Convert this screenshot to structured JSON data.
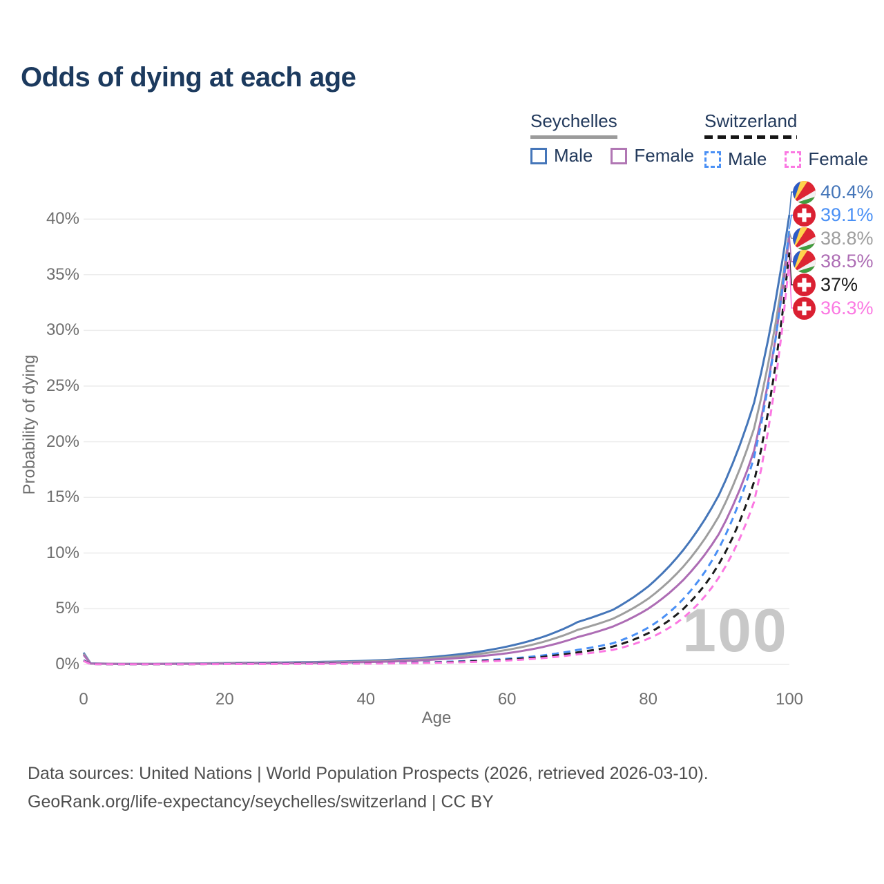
{
  "header": {
    "title": "Odds of dying at each age"
  },
  "legend": {
    "groups": [
      {
        "title": "Seychelles",
        "underline": "solid",
        "underline_color": "#9b9b9b",
        "items": [
          {
            "label": "Male",
            "color": "#4576b9",
            "dash": false
          },
          {
            "label": "Female",
            "color": "#b177b4",
            "dash": false
          }
        ]
      },
      {
        "title": "Switzerland",
        "underline": "dashed",
        "underline_color": "#151515",
        "items": [
          {
            "label": "Male",
            "color": "#4a90f5",
            "dash": true
          },
          {
            "label": "Female",
            "color": "#fb78e2",
            "dash": true
          }
        ]
      }
    ]
  },
  "chart_data": {
    "type": "line",
    "title": "Odds of dying at each age",
    "xlabel": "Age",
    "ylabel": "Probability of dying",
    "xlim": [
      0,
      100
    ],
    "ylim_pct": [
      0,
      43
    ],
    "grid": "horizontal-only",
    "watermark": "100",
    "y_ticks": [
      {
        "label": "0%",
        "value": 0
      },
      {
        "label": "5%",
        "value": 5
      },
      {
        "label": "10%",
        "value": 10
      },
      {
        "label": "15%",
        "value": 15
      },
      {
        "label": "20%",
        "value": 20
      },
      {
        "label": "25%",
        "value": 25
      },
      {
        "label": "30%",
        "value": 30
      },
      {
        "label": "35%",
        "value": 35
      },
      {
        "label": "40%",
        "value": 40
      }
    ],
    "x_ticks": [
      {
        "label": "0",
        "value": 0
      },
      {
        "label": "20",
        "value": 20
      },
      {
        "label": "40",
        "value": 40
      },
      {
        "label": "60",
        "value": 60
      },
      {
        "label": "80",
        "value": 80
      },
      {
        "label": "100",
        "value": 100
      }
    ],
    "ages": [
      0,
      1,
      5,
      10,
      15,
      20,
      25,
      30,
      35,
      40,
      45,
      50,
      55,
      60,
      65,
      70,
      75,
      80,
      85,
      90,
      95,
      100
    ],
    "series": [
      {
        "name": "Seychelles Male",
        "color": "#4576b9",
        "dash": false,
        "flag": "seychelles",
        "end_label": "40.4%",
        "end_value": 40.4,
        "values_pct": [
          1.05,
          0.09,
          0.05,
          0.05,
          0.08,
          0.12,
          0.15,
          0.19,
          0.24,
          0.32,
          0.47,
          0.7,
          1.05,
          1.6,
          2.45,
          3.8,
          4.9,
          7.0,
          10.3,
          15.2,
          23.5,
          40.4
        ]
      },
      {
        "name": "Seychelles Both sexes",
        "color": "#9e9e9e",
        "dash": false,
        "flag": "seychelles",
        "end_label": "38.8%",
        "end_value": 38.8,
        "values_pct": [
          0.95,
          0.08,
          0.05,
          0.04,
          0.07,
          0.1,
          0.12,
          0.15,
          0.19,
          0.26,
          0.38,
          0.57,
          0.86,
          1.3,
          2.0,
          3.1,
          4.1,
          5.9,
          8.8,
          13.3,
          21.2,
          38.8
        ]
      },
      {
        "name": "Seychelles Female",
        "color": "#ad6cb4",
        "dash": false,
        "flag": "seychelles",
        "end_label": "38.5%",
        "end_value": 38.5,
        "values_pct": [
          0.85,
          0.07,
          0.04,
          0.04,
          0.05,
          0.07,
          0.09,
          0.11,
          0.14,
          0.2,
          0.29,
          0.44,
          0.67,
          1.0,
          1.55,
          2.45,
          3.4,
          5.0,
          7.6,
          11.7,
          19.2,
          38.5
        ]
      },
      {
        "name": "Switzerland Male",
        "color": "#4a90f5",
        "dash": true,
        "flag": "switzerland",
        "end_label": "39.1%",
        "end_value": 39.1,
        "values_pct": [
          0.38,
          0.03,
          0.01,
          0.01,
          0.03,
          0.05,
          0.06,
          0.07,
          0.08,
          0.1,
          0.14,
          0.21,
          0.32,
          0.5,
          0.8,
          1.3,
          1.9,
          3.3,
          5.9,
          10.4,
          18.6,
          39.1
        ]
      },
      {
        "name": "Switzerland Both sexes",
        "color": "#1a1a1a",
        "dash": true,
        "flag": "switzerland",
        "end_label": "37%",
        "end_value": 37.0,
        "values_pct": [
          0.34,
          0.03,
          0.01,
          0.01,
          0.02,
          0.04,
          0.05,
          0.06,
          0.07,
          0.09,
          0.12,
          0.18,
          0.27,
          0.42,
          0.67,
          1.08,
          1.6,
          2.8,
          5.0,
          9.0,
          16.4,
          37.0
        ]
      },
      {
        "name": "Switzerland Female",
        "color": "#fb78e2",
        "dash": true,
        "flag": "switzerland",
        "end_label": "36.3%",
        "end_value": 36.3,
        "values_pct": [
          0.31,
          0.02,
          0.01,
          0.01,
          0.02,
          0.03,
          0.03,
          0.04,
          0.05,
          0.07,
          0.1,
          0.15,
          0.22,
          0.35,
          0.56,
          0.9,
          1.3,
          2.3,
          4.2,
          7.8,
          14.6,
          36.3
        ]
      }
    ],
    "flag_colors": {
      "seychelles": {
        "blue": "#2a5cc8",
        "yellow": "#ffd34d",
        "red": "#dd2533",
        "white": "#f2f2f2",
        "green": "#3f9e3f"
      },
      "switzerland": {
        "red": "#da2032",
        "cross": "#ffffff"
      }
    }
  },
  "footer": {
    "line1": "Data sources: United Nations | World Population Prospects (2026, retrieved 2026-03-10).",
    "line2": "GeoRank.org/life-expectancy/seychelles/switzerland | CC BY"
  }
}
